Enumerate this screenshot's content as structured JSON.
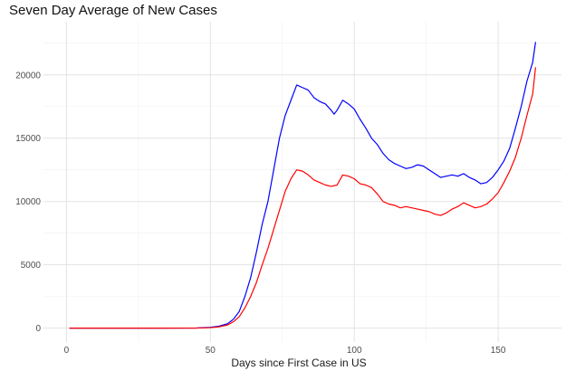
{
  "chart_data": {
    "type": "line",
    "title": "Seven Day Average of New Cases",
    "xlabel": "Days since First Case in US",
    "ylabel": "",
    "xlim": [
      -8,
      172
    ],
    "ylim": [
      -1100,
      24200
    ],
    "x_ticks": [
      0,
      50,
      100,
      150
    ],
    "y_ticks": [
      0,
      5000,
      10000,
      15000,
      20000
    ],
    "grid": true,
    "legend": "none",
    "series": [
      {
        "color": "#0000ff",
        "points": [
          [
            1,
            0
          ],
          [
            30,
            0
          ],
          [
            45,
            10
          ],
          [
            50,
            60
          ],
          [
            53,
            150
          ],
          [
            56,
            350
          ],
          [
            58,
            700
          ],
          [
            60,
            1300
          ],
          [
            62,
            2500
          ],
          [
            64,
            4000
          ],
          [
            66,
            6000
          ],
          [
            68,
            8200
          ],
          [
            70,
            10000
          ],
          [
            72,
            12500
          ],
          [
            74,
            15000
          ],
          [
            76,
            16800
          ],
          [
            78,
            18000
          ],
          [
            80,
            19200
          ],
          [
            82,
            19000
          ],
          [
            84,
            18800
          ],
          [
            86,
            18200
          ],
          [
            88,
            17900
          ],
          [
            90,
            17700
          ],
          [
            92,
            17200
          ],
          [
            93,
            16900
          ],
          [
            94,
            17200
          ],
          [
            96,
            18000
          ],
          [
            98,
            17700
          ],
          [
            100,
            17300
          ],
          [
            102,
            16500
          ],
          [
            104,
            15800
          ],
          [
            106,
            15000
          ],
          [
            108,
            14500
          ],
          [
            110,
            13800
          ],
          [
            112,
            13300
          ],
          [
            114,
            13000
          ],
          [
            116,
            12800
          ],
          [
            118,
            12600
          ],
          [
            120,
            12700
          ],
          [
            122,
            12900
          ],
          [
            124,
            12800
          ],
          [
            126,
            12500
          ],
          [
            128,
            12200
          ],
          [
            130,
            11900
          ],
          [
            132,
            12000
          ],
          [
            134,
            12100
          ],
          [
            136,
            12000
          ],
          [
            138,
            12200
          ],
          [
            140,
            11900
          ],
          [
            142,
            11700
          ],
          [
            144,
            11400
          ],
          [
            146,
            11500
          ],
          [
            148,
            11900
          ],
          [
            150,
            12500
          ],
          [
            152,
            13200
          ],
          [
            154,
            14200
          ],
          [
            156,
            15800
          ],
          [
            158,
            17500
          ],
          [
            160,
            19500
          ],
          [
            162,
            21000
          ],
          [
            163,
            22600
          ]
        ]
      },
      {
        "color": "#ff0000",
        "points": [
          [
            1,
            0
          ],
          [
            30,
            0
          ],
          [
            45,
            5
          ],
          [
            50,
            40
          ],
          [
            53,
            100
          ],
          [
            56,
            250
          ],
          [
            58,
            500
          ],
          [
            60,
            900
          ],
          [
            62,
            1600
          ],
          [
            64,
            2500
          ],
          [
            66,
            3600
          ],
          [
            68,
            5000
          ],
          [
            70,
            6300
          ],
          [
            72,
            7800
          ],
          [
            74,
            9300
          ],
          [
            76,
            10800
          ],
          [
            78,
            11800
          ],
          [
            80,
            12500
          ],
          [
            82,
            12400
          ],
          [
            84,
            12100
          ],
          [
            86,
            11700
          ],
          [
            88,
            11500
          ],
          [
            90,
            11300
          ],
          [
            92,
            11200
          ],
          [
            94,
            11300
          ],
          [
            96,
            12100
          ],
          [
            98,
            12000
          ],
          [
            100,
            11800
          ],
          [
            102,
            11400
          ],
          [
            104,
            11300
          ],
          [
            106,
            11100
          ],
          [
            108,
            10600
          ],
          [
            110,
            10000
          ],
          [
            112,
            9800
          ],
          [
            114,
            9700
          ],
          [
            116,
            9500
          ],
          [
            118,
            9600
          ],
          [
            120,
            9500
          ],
          [
            122,
            9400
          ],
          [
            124,
            9300
          ],
          [
            126,
            9200
          ],
          [
            128,
            9000
          ],
          [
            130,
            8900
          ],
          [
            132,
            9100
          ],
          [
            134,
            9400
          ],
          [
            136,
            9600
          ],
          [
            138,
            9900
          ],
          [
            140,
            9700
          ],
          [
            142,
            9500
          ],
          [
            144,
            9600
          ],
          [
            146,
            9800
          ],
          [
            148,
            10200
          ],
          [
            150,
            10700
          ],
          [
            152,
            11500
          ],
          [
            154,
            12400
          ],
          [
            156,
            13500
          ],
          [
            158,
            15000
          ],
          [
            160,
            16800
          ],
          [
            162,
            18500
          ],
          [
            163,
            20600
          ]
        ]
      }
    ]
  }
}
